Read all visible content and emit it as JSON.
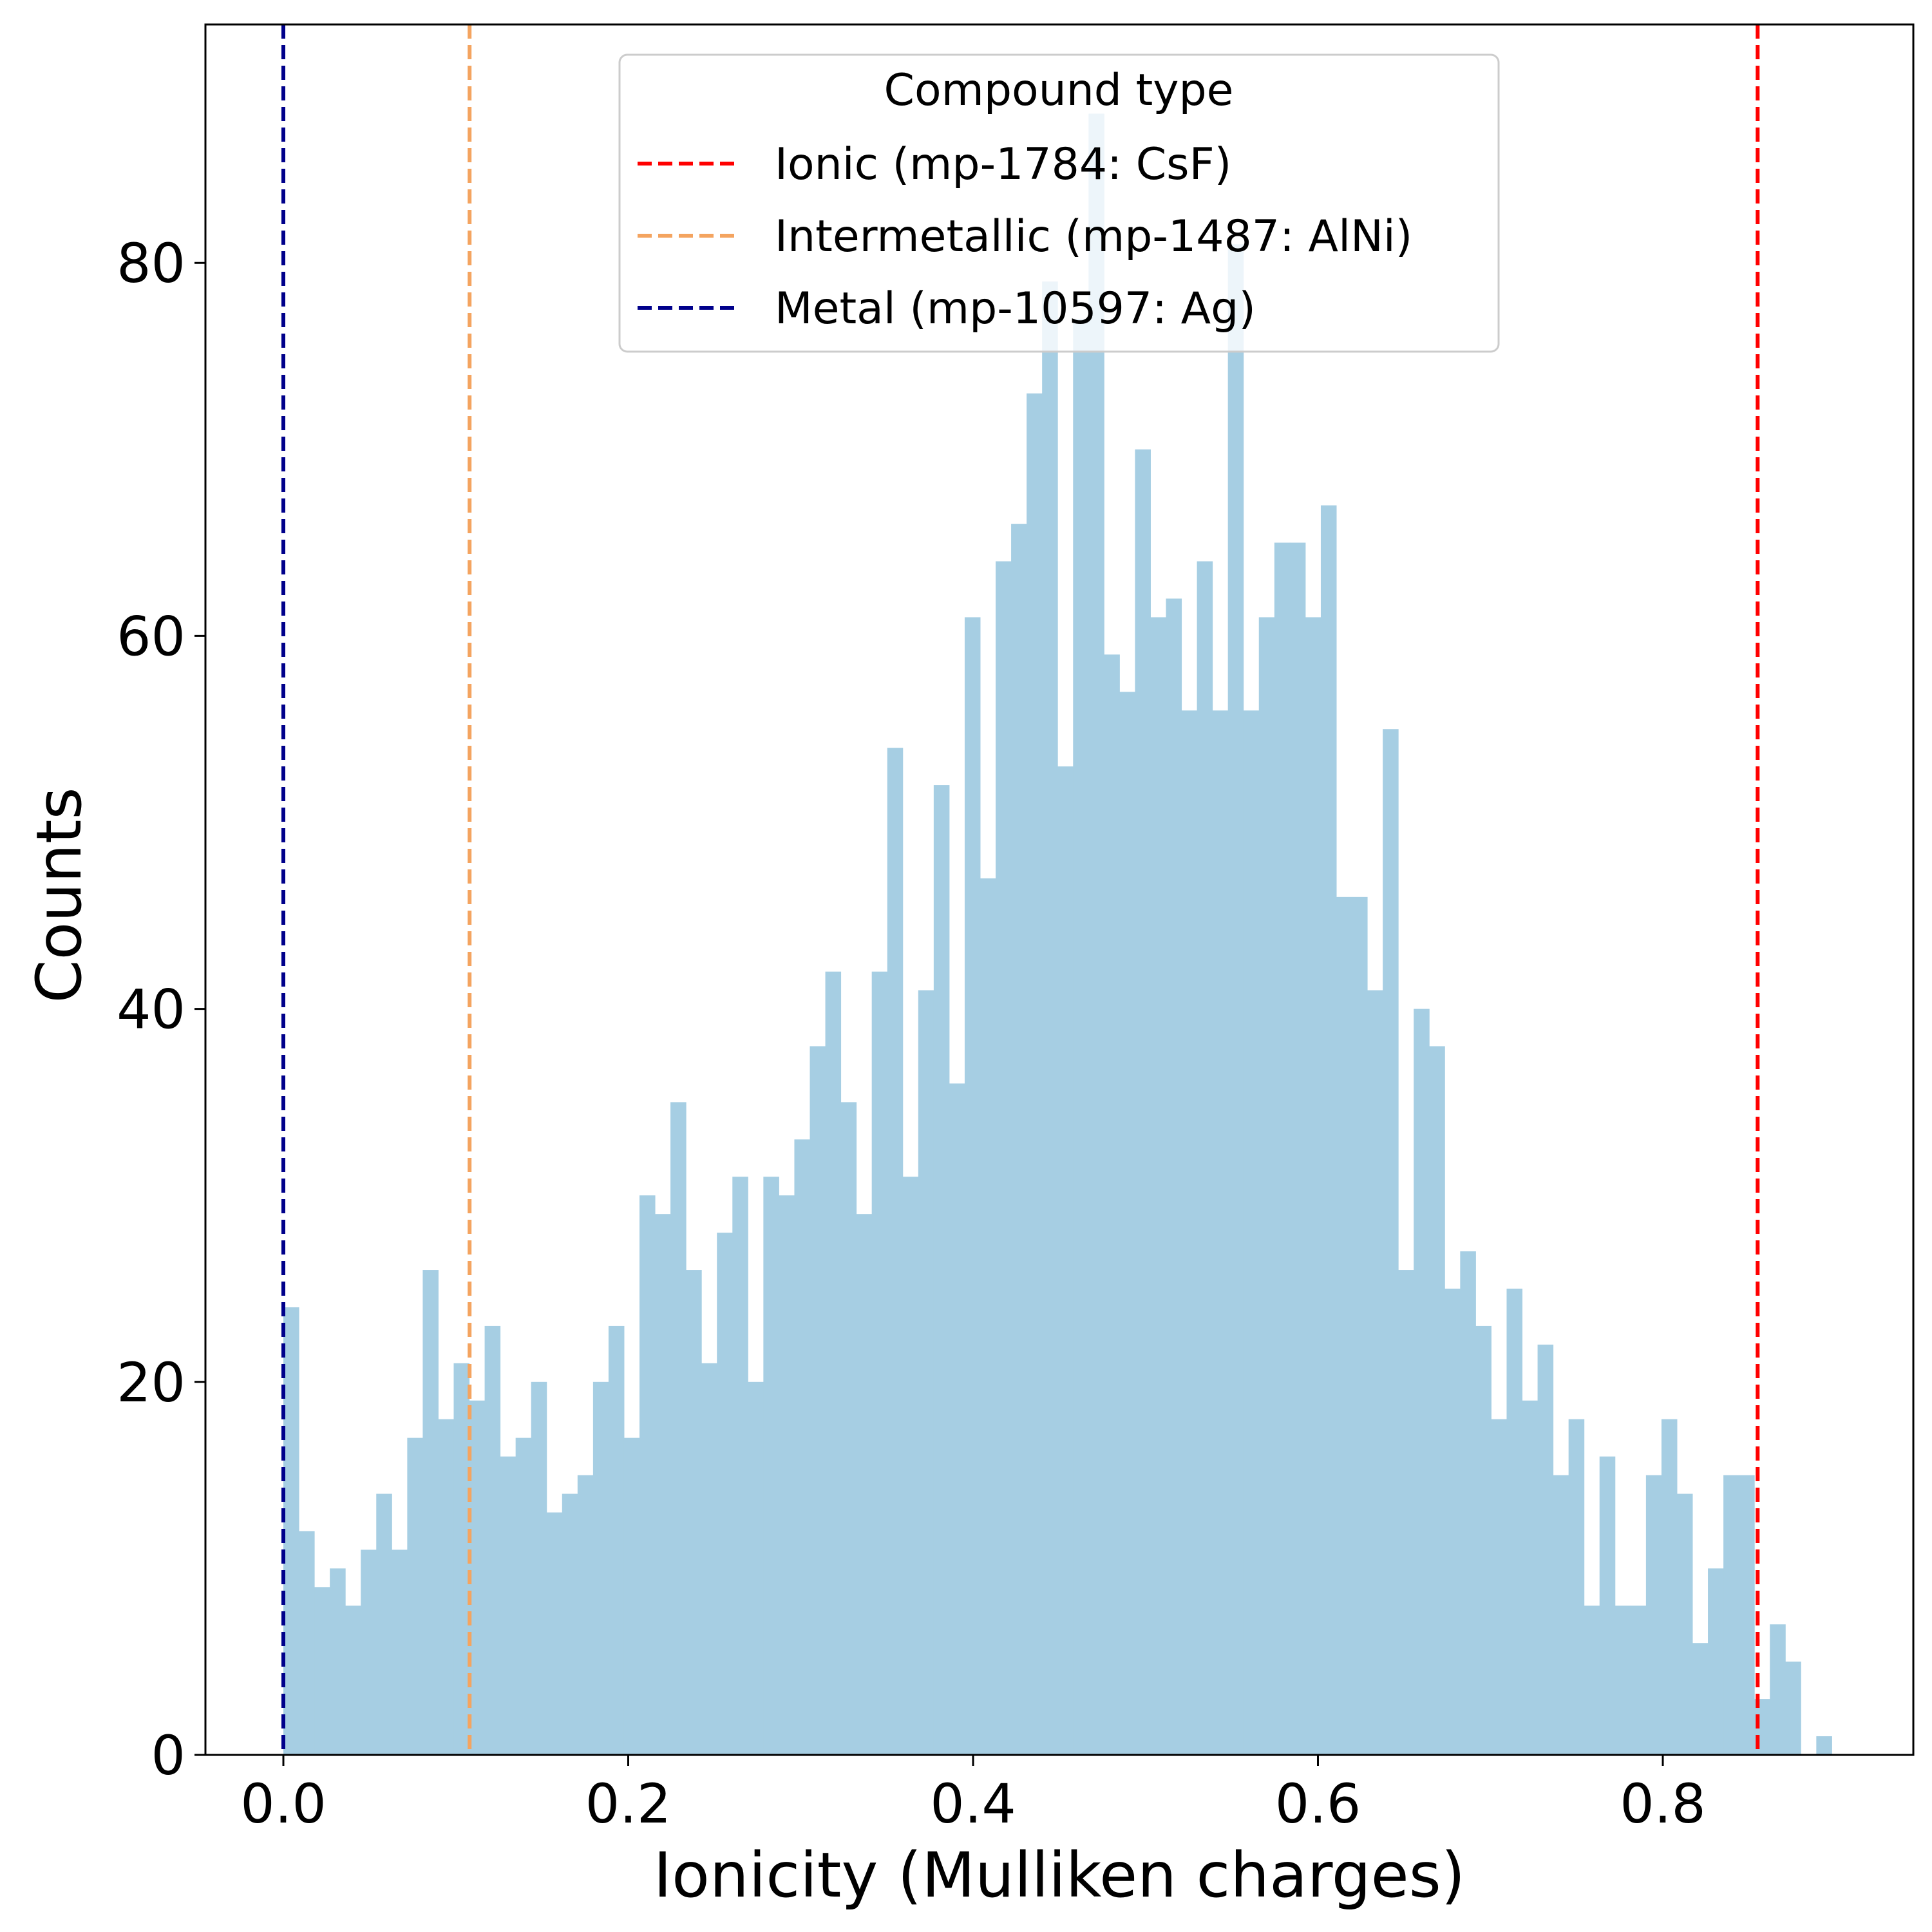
{
  "chart_data": {
    "type": "bar",
    "subtype": "histogram",
    "title": "",
    "xlabel": "Ionicity (Mulliken charges)",
    "ylabel": "Counts",
    "xlim": [
      -0.045,
      0.95
    ],
    "ylim": [
      0,
      92
    ],
    "xticks": [
      "0.0",
      "0.2",
      "0.4",
      "0.6",
      "0.8"
    ],
    "yticks": [
      "0",
      "20",
      "40",
      "60",
      "80"
    ],
    "grid": false,
    "bar_color": "#a6cee3",
    "bin_start": 0.0,
    "bin_width": 0.00898,
    "counts": [
      24,
      12,
      9,
      10,
      8,
      11,
      14,
      11,
      17,
      26,
      18,
      21,
      19,
      23,
      16,
      17,
      20,
      13,
      14,
      15,
      20,
      23,
      17,
      30,
      29,
      35,
      26,
      21,
      28,
      31,
      20,
      31,
      30,
      33,
      38,
      42,
      35,
      29,
      42,
      54,
      31,
      41,
      52,
      36,
      61,
      47,
      64,
      66,
      73,
      79,
      53,
      77,
      88,
      59,
      57,
      70,
      61,
      62,
      56,
      64,
      56,
      81,
      56,
      61,
      65,
      65,
      61,
      67,
      46,
      46,
      41,
      55,
      26,
      40,
      38,
      25,
      27,
      23,
      18,
      25,
      19,
      22,
      15,
      18,
      8,
      16,
      8,
      8,
      15,
      18,
      14,
      6,
      10,
      15,
      15,
      3,
      7,
      5,
      0,
      1
    ],
    "vlines": [
      {
        "label": "Ionic (mp-1784: CsF)",
        "x": 0.855,
        "color": "#ff0000",
        "style": "dashed"
      },
      {
        "label": "Intermetallic (mp-1487: AlNi)",
        "x": 0.108,
        "color": "#f4a460",
        "style": "dashed"
      },
      {
        "label": "Metal (mp-10597: Ag)",
        "x": 0.0,
        "color": "#00008b",
        "style": "dashed"
      }
    ],
    "legend": {
      "title": "Compound type",
      "placement": "top-center"
    }
  }
}
